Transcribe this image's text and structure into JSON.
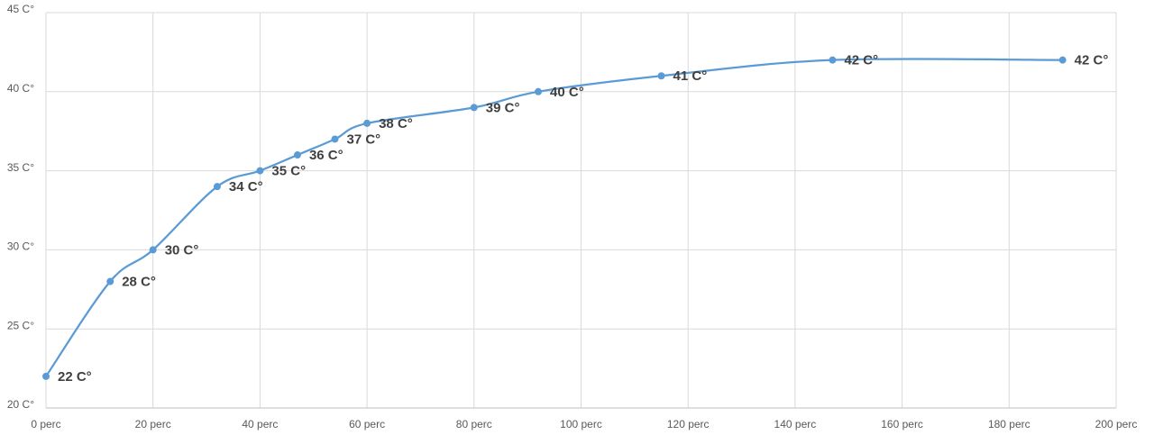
{
  "chart_data": {
    "type": "line",
    "smooth": true,
    "color": "#5b9bd5",
    "grid": true,
    "x": [
      0,
      12,
      20,
      32,
      40,
      47,
      54,
      60,
      80,
      92,
      115,
      147,
      190
    ],
    "values": [
      22,
      28,
      30,
      34,
      35,
      36,
      37,
      38,
      39,
      40,
      41,
      42,
      42
    ],
    "value_labels": [
      "22 C°",
      "28 C°",
      "30 C°",
      "34 C°",
      "35 C°",
      "36 C°",
      "37 C°",
      "38 C°",
      "39 C°",
      "40 C°",
      "41 C°",
      "42 C°",
      "42 C°"
    ],
    "xlim": [
      0,
      200
    ],
    "xticks": [
      {
        "value": 0,
        "label": "0 perc"
      },
      {
        "value": 20,
        "label": "20 perc"
      },
      {
        "value": 40,
        "label": "40 perc"
      },
      {
        "value": 60,
        "label": "60 perc"
      },
      {
        "value": 80,
        "label": "80 perc"
      },
      {
        "value": 100,
        "label": "100 perc"
      },
      {
        "value": 120,
        "label": "120 perc"
      },
      {
        "value": 140,
        "label": "140 perc"
      },
      {
        "value": 160,
        "label": "160 perc"
      },
      {
        "value": 180,
        "label": "180 perc"
      },
      {
        "value": 200,
        "label": "200 perc"
      }
    ],
    "ylim": [
      20,
      45
    ],
    "yticks": [
      {
        "value": 20,
        "label": "20 C°"
      },
      {
        "value": 25,
        "label": "25 C°"
      },
      {
        "value": 30,
        "label": "30 C°"
      },
      {
        "value": 35,
        "label": "35 C°"
      },
      {
        "value": 40,
        "label": "40 C°"
      },
      {
        "value": 45,
        "label": "45 C°"
      }
    ]
  }
}
